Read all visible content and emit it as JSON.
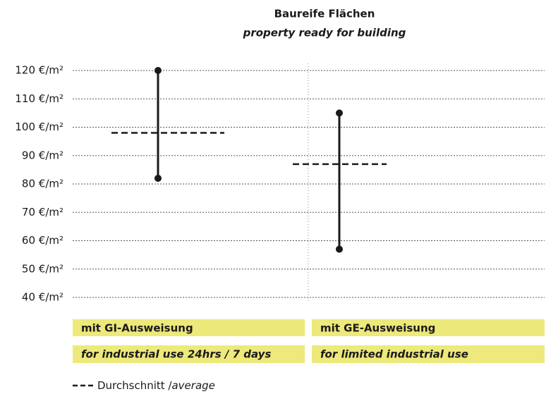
{
  "chart_data": {
    "type": "range",
    "title": "Baureife Flächen",
    "subtitle": "property ready for building",
    "categories": [
      "mit GI-Ausweisung",
      "mit GE-Ausweisung"
    ],
    "categories_en": [
      "for industrial use 24hrs / 7 days",
      "for limited industrial use"
    ],
    "low": [
      82,
      57
    ],
    "high": [
      120,
      105
    ],
    "average": [
      98,
      87
    ],
    "legend": {
      "de": "Durchschnitt /",
      "en": "average"
    },
    "color": "#1a1a1a",
    "label_color": "#ede97a",
    "ylim": [
      40,
      120
    ],
    "yticks": [
      {
        "value": 40,
        "label": "40 €/m²"
      },
      {
        "value": 50,
        "label": "50 €/m²"
      },
      {
        "value": 60,
        "label": "60 €/m²"
      },
      {
        "value": 70,
        "label": "70 €/m²"
      },
      {
        "value": 80,
        "label": "80 €/m²"
      },
      {
        "value": 90,
        "label": "90 €/m²"
      },
      {
        "value": 100,
        "label": "100 €/m²"
      },
      {
        "value": 110,
        "label": "110 €/m²"
      },
      {
        "value": 120,
        "label": "120 €/m²"
      }
    ],
    "grid": true
  }
}
